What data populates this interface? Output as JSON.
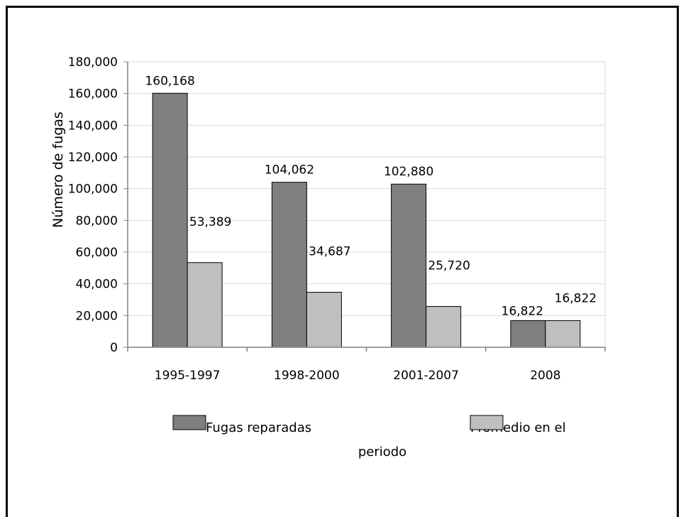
{
  "chart_data": {
    "type": "bar",
    "categories": [
      "1995-1997",
      "1998-2000",
      "2001-2007",
      "2008"
    ],
    "series": [
      {
        "name": "Fugas reparadas",
        "values": [
          160168,
          104062,
          102880,
          16822
        ],
        "labels": [
          "160,168",
          "104,062",
          "102,880",
          "16,822"
        ],
        "color": "#7f7f7f"
      },
      {
        "name": "Promedio en el periodo",
        "values": [
          53389,
          34687,
          25720,
          16822
        ],
        "labels": [
          "53,389",
          "34,687",
          "25,720",
          "16,822"
        ],
        "color": "#bfbfbf"
      }
    ],
    "title": "",
    "xlabel": "",
    "ylabel": "Número de fugas",
    "ylim": [
      0,
      180000
    ],
    "yticks": [
      0,
      20000,
      40000,
      60000,
      80000,
      100000,
      120000,
      140000,
      160000,
      180000
    ],
    "ytick_labels": [
      "0",
      "20,000",
      "40,000",
      "60,000",
      "80,000",
      "100,000",
      "120,000",
      "140,000",
      "160,000",
      "180,000"
    ],
    "grid": true,
    "legend": {
      "position": "bottom",
      "items": [
        {
          "text": "Fugas reparadas"
        },
        {
          "text_line1": "Promedio en el",
          "text_line2": "periodo"
        }
      ]
    },
    "colors": {
      "gridline": "#d9d9d9",
      "axis": "#808080"
    }
  }
}
